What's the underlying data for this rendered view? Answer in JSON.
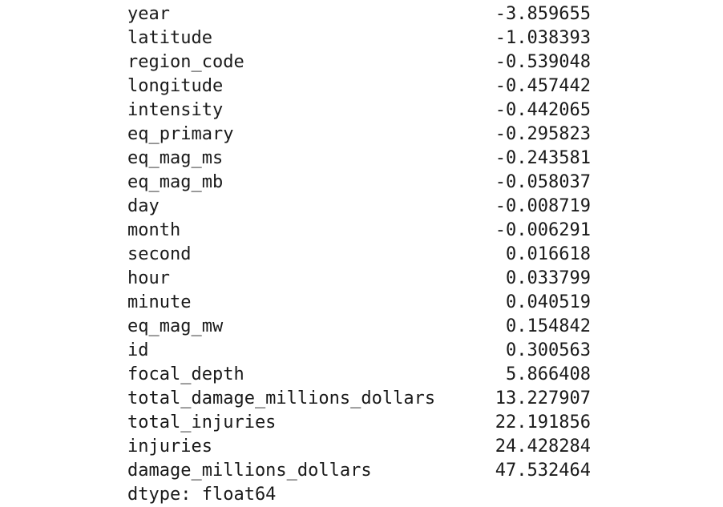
{
  "series": [
    {
      "name": "year",
      "value": "-3.859655"
    },
    {
      "name": "latitude",
      "value": "-1.038393"
    },
    {
      "name": "region_code",
      "value": "-0.539048"
    },
    {
      "name": "longitude",
      "value": "-0.457442"
    },
    {
      "name": "intensity",
      "value": "-0.442065"
    },
    {
      "name": "eq_primary",
      "value": "-0.295823"
    },
    {
      "name": "eq_mag_ms",
      "value": "-0.243581"
    },
    {
      "name": "eq_mag_mb",
      "value": "-0.058037"
    },
    {
      "name": "day",
      "value": "-0.008719"
    },
    {
      "name": "month",
      "value": "-0.006291"
    },
    {
      "name": "second",
      "value": "0.016618"
    },
    {
      "name": "hour",
      "value": "0.033799"
    },
    {
      "name": "minute",
      "value": "0.040519"
    },
    {
      "name": "eq_mag_mw",
      "value": "0.154842"
    },
    {
      "name": "id",
      "value": "0.300563"
    },
    {
      "name": "focal_depth",
      "value": "5.866408"
    },
    {
      "name": "total_damage_millions_dollars",
      "value": "13.227907"
    },
    {
      "name": "total_injuries",
      "value": "22.191856"
    },
    {
      "name": "injuries",
      "value": "24.428284"
    },
    {
      "name": "damage_millions_dollars",
      "value": "47.532464"
    }
  ],
  "dtype_line": "dtype: float64"
}
